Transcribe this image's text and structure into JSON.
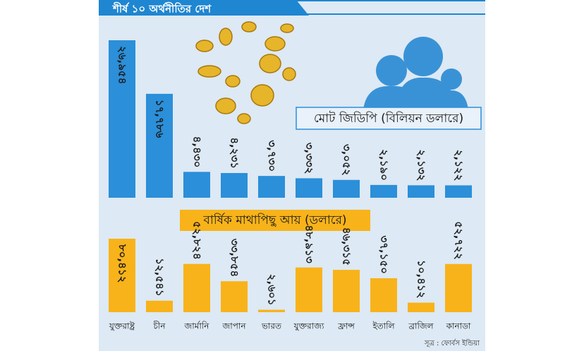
{
  "header": {
    "title": "শীর্ষ ১০ অর্থনীতির দেশ"
  },
  "source": "সূত্র : ফোর্বস ইন্ডিয়া",
  "chart_data": [
    {
      "type": "bar",
      "title": "মোট জিডিপি (বিলিয়ন ডলারে)",
      "color": "#2b8fd9",
      "values": [
        26954,
        17786,
        4430,
        4231,
        3730,
        3332,
        3052,
        2190,
        2132,
        2122
      ],
      "value_labels": [
        "২৬,৯৫৪",
        "১৭,৭৮৬",
        "৪,৪৩০",
        "৪,২৩১",
        "৩,৭৩০",
        "৩,৩৩২",
        "৩,০৫২",
        "২,১৯০",
        "২,১৩২",
        "২,১২২"
      ]
    },
    {
      "type": "bar",
      "title": "বার্ষিক মাথাপিছু আয় (ডলারে)",
      "color": "#f8b31a",
      "categories": [
        "যুক্তরাষ্ট্র",
        "চীন",
        "জার্মানি",
        "জাপান",
        "ভারত",
        "যুক্তরাজ্য",
        "ফ্রান্স",
        "ইতালি",
        "ব্রাজিল",
        "কানাডা"
      ],
      "values": [
        80412,
        12541,
        52824,
        33854,
        2601,
        48913,
        46315,
        37150,
        10412,
        52722
      ],
      "value_labels": [
        "৮০,৪১২",
        "১২,৫৪১",
        "৫২,৮২৪",
        "৩৩,৮৫৪",
        "২,৬০১",
        "৪৮,৯১৩",
        "৪৬,৩১৫",
        "৩৭,১৫০",
        "১০,৪১২",
        "৫২,৭২২"
      ]
    }
  ]
}
